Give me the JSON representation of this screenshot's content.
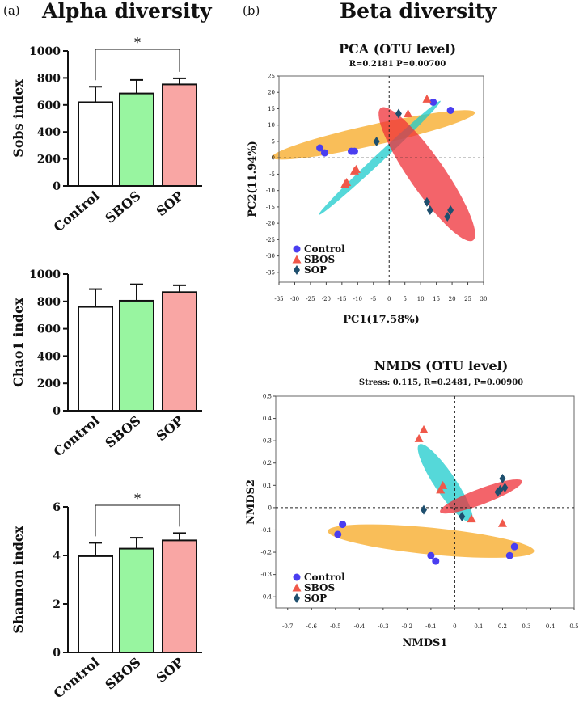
{
  "panels": {
    "a": {
      "label": "(a)",
      "title": "Alpha diversity"
    },
    "b": {
      "label": "(b)",
      "title": "Beta diversity"
    }
  },
  "colors": {
    "control_fill": "#ffffff",
    "sbos_fill": "#98f5a0",
    "sop_fill": "#f9a6a4",
    "pt_control": "#4a3ef0",
    "pt_sbos": "#f0584a",
    "pt_sop": "#1e4f6e",
    "ell_control": "#f7a822",
    "ell_sbos": "#ef3038",
    "ell_sop": "#1ccbcc"
  },
  "chart_data": [
    {
      "type": "bar",
      "id": "sobs",
      "ylabel": "Sobs index",
      "categories": [
        "Control",
        "SBOS",
        "SOP"
      ],
      "values": [
        620,
        685,
        752
      ],
      "errors": [
        115,
        100,
        45
      ],
      "ylim": [
        0,
        1000
      ],
      "yticks": [
        0,
        200,
        400,
        600,
        800,
        1000
      ],
      "significance": {
        "from": 0,
        "to": 2,
        "label": "*"
      }
    },
    {
      "type": "bar",
      "id": "chao1",
      "ylabel": "Chao1 index",
      "categories": [
        "Control",
        "SBOS",
        "SOP"
      ],
      "values": [
        760,
        805,
        868
      ],
      "errors": [
        130,
        120,
        50
      ],
      "ylim": [
        0,
        1000
      ],
      "yticks": [
        0,
        200,
        400,
        600,
        800,
        1000
      ]
    },
    {
      "type": "bar",
      "id": "shannon",
      "ylabel": "Shannon index",
      "categories": [
        "Control",
        "SBOS",
        "SOP"
      ],
      "values": [
        3.97,
        4.28,
        4.62
      ],
      "errors": [
        0.55,
        0.45,
        0.3
      ],
      "ylim": [
        0,
        6
      ],
      "yticks": [
        0,
        2,
        4,
        6
      ],
      "significance": {
        "from": 0,
        "to": 2,
        "label": "*"
      }
    },
    {
      "type": "scatter",
      "id": "pca",
      "title": "PCA (OTU level)",
      "subtitle": "R=0.2181      P=0.00700",
      "xlabel": "PC1(17.58%)",
      "ylabel": "PC2(11.94%)",
      "xlim": [
        -35,
        30
      ],
      "ylim": [
        -38,
        25
      ],
      "xticks": [
        -35,
        -30,
        -25,
        -20,
        -15,
        -10,
        -5,
        0,
        5,
        10,
        15,
        20,
        25,
        30
      ],
      "yticks": [
        -35,
        -30,
        -25,
        -20,
        -15,
        -10,
        -5,
        0,
        5,
        10,
        15,
        20,
        25
      ],
      "legend": [
        "Control",
        "SBOS",
        "SOP"
      ],
      "ellipses": [
        {
          "group": "Control",
          "cx": -5,
          "cy": 7,
          "rx": 33,
          "ry": 3.2,
          "angle": 12
        },
        {
          "group": "SOP",
          "cx": -3,
          "cy": 0,
          "rx": 26,
          "ry": 1.3,
          "angle": 42
        },
        {
          "group": "SBOS",
          "cx": 12,
          "cy": -5,
          "rx": 25,
          "ry": 5.5,
          "angle": -54
        }
      ],
      "series": [
        {
          "name": "Control",
          "marker": "circle",
          "points": [
            [
              -22,
              3
            ],
            [
              -20.5,
              1.5
            ],
            [
              -12,
              2
            ],
            [
              -11,
              2
            ],
            [
              14,
              17
            ],
            [
              19.5,
              14.5
            ]
          ]
        },
        {
          "name": "SBOS",
          "marker": "triangle",
          "points": [
            [
              -14,
              -8
            ],
            [
              -13.5,
              -7.5
            ],
            [
              -11,
              -4
            ],
            [
              -10.5,
              -3.5
            ],
            [
              6,
              13.5
            ],
            [
              12,
              18
            ]
          ]
        },
        {
          "name": "SOP",
          "marker": "diamond",
          "points": [
            [
              -4,
              5
            ],
            [
              3,
              13.5
            ],
            [
              12,
              -13.5
            ],
            [
              13,
              -16
            ],
            [
              18.5,
              -18
            ],
            [
              19.5,
              -16
            ]
          ]
        }
      ]
    },
    {
      "type": "scatter",
      "id": "nmds",
      "title": "NMDS (OTU level)",
      "subtitle": "Stress: 0.115, R=0.2481, P=0.00900",
      "xlabel": "NMDS1",
      "ylabel": "NMDS2",
      "xlim": [
        -0.75,
        0.5
      ],
      "ylim": [
        -0.45,
        0.5
      ],
      "xticks": [
        -0.7,
        -0.6,
        -0.5,
        -0.4,
        -0.3,
        -0.2,
        -0.1,
        0,
        0.1,
        0.2,
        0.3,
        0.4,
        0.5
      ],
      "yticks": [
        -0.4,
        -0.3,
        -0.2,
        -0.1,
        0,
        0.1,
        0.2,
        0.3,
        0.4,
        0.5
      ],
      "legend": [
        "Control",
        "SBOS",
        "SOP"
      ],
      "ellipses": [
        {
          "group": "Control",
          "cx": -0.1,
          "cy": -0.15,
          "rx": 0.435,
          "ry": 0.06,
          "angle": -6
        },
        {
          "group": "SOP",
          "cx": -0.04,
          "cy": 0.11,
          "rx": 0.205,
          "ry": 0.045,
          "angle": -58
        },
        {
          "group": "SBOS",
          "cx": 0.11,
          "cy": 0.05,
          "rx": 0.185,
          "ry": 0.035,
          "angle": 22
        }
      ],
      "series": [
        {
          "name": "Control",
          "marker": "circle",
          "points": [
            [
              -0.49,
              -0.12
            ],
            [
              -0.47,
              -0.075
            ],
            [
              -0.1,
              -0.215
            ],
            [
              -0.08,
              -0.24
            ],
            [
              0.23,
              -0.215
            ],
            [
              0.25,
              -0.175
            ]
          ]
        },
        {
          "name": "SBOS",
          "marker": "triangle",
          "points": [
            [
              -0.15,
              0.31
            ],
            [
              -0.13,
              0.35
            ],
            [
              -0.06,
              0.08
            ],
            [
              -0.05,
              0.1
            ],
            [
              0.07,
              -0.05
            ],
            [
              0.2,
              -0.07
            ]
          ]
        },
        {
          "name": "SOP",
          "marker": "diamond",
          "points": [
            [
              -0.13,
              -0.01
            ],
            [
              0.03,
              -0.04
            ],
            [
              0.18,
              0.07
            ],
            [
              0.19,
              0.08
            ],
            [
              0.2,
              0.13
            ],
            [
              0.21,
              0.09
            ]
          ]
        }
      ]
    }
  ]
}
